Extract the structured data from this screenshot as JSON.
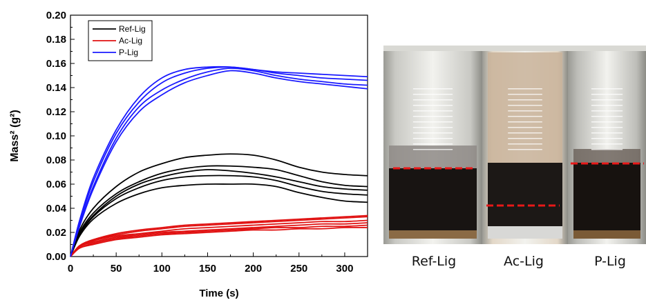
{
  "chart_data": {
    "type": "line",
    "xlabel": "Time (s)",
    "ylabel": "Mass² (g²)",
    "xlim": [
      0,
      325
    ],
    "ylim": [
      0,
      0.2
    ],
    "xticks": [
      0,
      50,
      100,
      150,
      200,
      250,
      300
    ],
    "yticks": [
      0.0,
      0.02,
      0.04,
      0.06,
      0.08,
      0.1,
      0.12,
      0.14,
      0.16,
      0.18,
      0.2
    ],
    "xtick_labels": [
      "0",
      "50",
      "100",
      "150",
      "200",
      "250",
      "300"
    ],
    "ytick_labels": [
      "0.00",
      "0.02",
      "0.04",
      "0.06",
      "0.08",
      "0.10",
      "0.12",
      "0.14",
      "0.16",
      "0.18",
      "0.20"
    ],
    "grid": false,
    "legend_position": "top-left",
    "legend": [
      "Ref-Lig",
      "Ac-Lig",
      "P-Lig"
    ],
    "series": [
      {
        "name": "Ref-Lig",
        "color": "#000000",
        "runs": [
          {
            "x": [
              0,
              10,
              25,
              50,
              75,
              100,
              125,
              150,
              175,
              200,
              225,
              250,
              275,
              300,
              325
            ],
            "y": [
              0,
              0.022,
              0.04,
              0.058,
              0.07,
              0.077,
              0.082,
              0.084,
              0.085,
              0.084,
              0.08,
              0.074,
              0.07,
              0.068,
              0.067
            ]
          },
          {
            "x": [
              0,
              10,
              25,
              50,
              75,
              100,
              125,
              150,
              175,
              200,
              225,
              250,
              275,
              300,
              325
            ],
            "y": [
              0,
              0.02,
              0.036,
              0.052,
              0.062,
              0.069,
              0.073,
              0.075,
              0.075,
              0.074,
              0.072,
              0.067,
              0.062,
              0.059,
              0.058
            ]
          },
          {
            "x": [
              0,
              10,
              25,
              50,
              75,
              100,
              125,
              150,
              175,
              200,
              225,
              250,
              275,
              300,
              325
            ],
            "y": [
              0,
              0.018,
              0.033,
              0.048,
              0.057,
              0.063,
              0.066,
              0.067,
              0.067,
              0.066,
              0.063,
              0.058,
              0.054,
              0.052,
              0.051
            ]
          },
          {
            "x": [
              0,
              10,
              25,
              50,
              75,
              100,
              125,
              150,
              175,
              200,
              225,
              250,
              275,
              300,
              325
            ],
            "y": [
              0,
              0.017,
              0.031,
              0.044,
              0.052,
              0.057,
              0.059,
              0.06,
              0.06,
              0.06,
              0.058,
              0.053,
              0.049,
              0.046,
              0.045
            ]
          },
          {
            "x": [
              0,
              10,
              25,
              50,
              75,
              100,
              125,
              150,
              175,
              200,
              225,
              250,
              275,
              300,
              325
            ],
            "y": [
              0,
              0.019,
              0.034,
              0.05,
              0.06,
              0.066,
              0.07,
              0.072,
              0.071,
              0.069,
              0.066,
              0.062,
              0.058,
              0.056,
              0.055
            ]
          }
        ]
      },
      {
        "name": "Ac-Lig",
        "color": "#e01010",
        "runs": [
          {
            "x": [
              0,
              10,
              25,
              50,
              75,
              100,
              125,
              150,
              175,
              200,
              225,
              250,
              275,
              300,
              325
            ],
            "y": [
              0,
              0.009,
              0.014,
              0.019,
              0.022,
              0.024,
              0.026,
              0.027,
              0.028,
              0.029,
              0.03,
              0.031,
              0.032,
              0.033,
              0.034
            ]
          },
          {
            "x": [
              0,
              10,
              25,
              50,
              75,
              100,
              125,
              150,
              175,
              200,
              225,
              250,
              275,
              300,
              325
            ],
            "y": [
              0,
              0.009,
              0.014,
              0.018,
              0.021,
              0.023,
              0.025,
              0.026,
              0.027,
              0.028,
              0.029,
              0.03,
              0.031,
              0.032,
              0.033
            ]
          },
          {
            "x": [
              0,
              10,
              25,
              50,
              75,
              100,
              125,
              150,
              175,
              200,
              225,
              250,
              275,
              300,
              325
            ],
            "y": [
              0,
              0.008,
              0.013,
              0.017,
              0.019,
              0.021,
              0.023,
              0.024,
              0.025,
              0.026,
              0.027,
              0.028,
              0.029,
              0.029,
              0.03
            ]
          },
          {
            "x": [
              0,
              10,
              25,
              50,
              75,
              100,
              125,
              150,
              175,
              200,
              225,
              250,
              275,
              300,
              325
            ],
            "y": [
              0,
              0.008,
              0.012,
              0.016,
              0.018,
              0.02,
              0.021,
              0.022,
              0.023,
              0.024,
              0.025,
              0.026,
              0.027,
              0.027,
              0.028
            ]
          },
          {
            "x": [
              0,
              10,
              25,
              50,
              75,
              100,
              125,
              150,
              175,
              200,
              225,
              250,
              275,
              300,
              325
            ],
            "y": [
              0,
              0.007,
              0.011,
              0.015,
              0.017,
              0.019,
              0.02,
              0.021,
              0.022,
              0.023,
              0.024,
              0.024,
              0.025,
              0.025,
              0.026
            ]
          },
          {
            "x": [
              0,
              10,
              25,
              50,
              75,
              100,
              125,
              150,
              175,
              200,
              225,
              250,
              275,
              300,
              325
            ],
            "y": [
              0,
              0.007,
              0.01,
              0.014,
              0.016,
              0.018,
              0.019,
              0.02,
              0.021,
              0.022,
              0.022,
              0.023,
              0.023,
              0.024,
              0.024
            ]
          }
        ]
      },
      {
        "name": "P-Lig",
        "color": "#1a1aff",
        "runs": [
          {
            "x": [
              0,
              10,
              25,
              50,
              75,
              100,
              125,
              150,
              175,
              200,
              225,
              250,
              275,
              300,
              325
            ],
            "y": [
              0,
              0.03,
              0.065,
              0.105,
              0.132,
              0.148,
              0.155,
              0.157,
              0.157,
              0.155,
              0.153,
              0.152,
              0.151,
              0.15,
              0.149
            ]
          },
          {
            "x": [
              0,
              10,
              25,
              50,
              75,
              100,
              125,
              150,
              175,
              200,
              225,
              250,
              275,
              300,
              325
            ],
            "y": [
              0,
              0.028,
              0.062,
              0.102,
              0.128,
              0.144,
              0.152,
              0.156,
              0.157,
              0.155,
              0.152,
              0.15,
              0.148,
              0.147,
              0.146
            ]
          },
          {
            "x": [
              0,
              10,
              25,
              50,
              75,
              100,
              125,
              150,
              175,
              200,
              225,
              250,
              275,
              300,
              325
            ],
            "y": [
              0,
              0.026,
              0.058,
              0.098,
              0.124,
              0.138,
              0.147,
              0.153,
              0.156,
              0.154,
              0.15,
              0.147,
              0.145,
              0.143,
              0.142
            ]
          },
          {
            "x": [
              0,
              10,
              25,
              50,
              75,
              100,
              125,
              150,
              175,
              200,
              225,
              250,
              275,
              300,
              325
            ],
            "y": [
              0,
              0.025,
              0.056,
              0.095,
              0.12,
              0.134,
              0.144,
              0.15,
              0.154,
              0.152,
              0.148,
              0.145,
              0.143,
              0.141,
              0.139
            ]
          }
        ]
      }
    ]
  },
  "photos": [
    {
      "label": "Ref-Lig",
      "colors": {
        "glass": "#c9c9c4",
        "sand": "#8e8a86",
        "dark": "#181412",
        "bottom": "#8a6a45",
        "line": "#e81818"
      }
    },
    {
      "label": "Ac-Lig",
      "colors": {
        "glass": "#e3d8c8",
        "sand": "#c9b39a",
        "dark": "#1c1816",
        "bottom": "#d8d8d6",
        "line": "#e81818"
      }
    },
    {
      "label": "P-Lig",
      "colors": {
        "glass": "#bdbdb8",
        "sand": "#6e655e",
        "dark": "#17120f",
        "bottom": "#7a5a36",
        "line": "#e81818"
      }
    }
  ]
}
